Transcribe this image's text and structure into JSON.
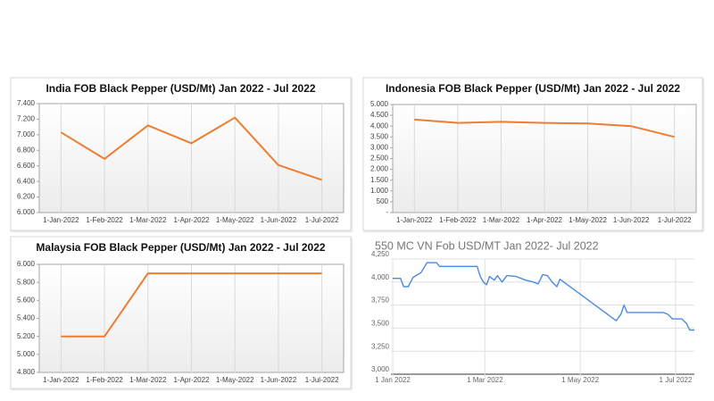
{
  "chart_data": [
    {
      "type": "line",
      "title": "India FOB Black Pepper (USD/Mt) Jan 2022 - Jul 2022",
      "categories": [
        "1-Jan-2022",
        "1-Feb-2022",
        "1-Mar-2022",
        "1-Apr-2022",
        "1-May-2022",
        "1-Jun-2022",
        "1-Jul-2022"
      ],
      "values": [
        7030,
        6690,
        7120,
        6890,
        7220,
        6610,
        6420
      ],
      "color": "#ed7d31",
      "ylim": [
        6000,
        7400
      ],
      "yticks": [
        {
          "value": 6000,
          "label": "6.000"
        },
        {
          "value": 6200,
          "label": "6.200"
        },
        {
          "value": 6400,
          "label": "6.400"
        },
        {
          "value": 6600,
          "label": "6.600"
        },
        {
          "value": 6800,
          "label": "6.800"
        },
        {
          "value": 7000,
          "label": "7.000"
        },
        {
          "value": 7200,
          "label": "7.200"
        },
        {
          "value": 7400,
          "label": "7.400"
        }
      ]
    },
    {
      "type": "line",
      "title": "Indonesia FOB Black Pepper (USD/Mt) Jan 2022 - Jul 2022",
      "categories": [
        "1-Jan-2022",
        "1-Feb-2022",
        "1-Mar-2022",
        "1-Apr-2022",
        "1-May-2022",
        "1-Jun-2022",
        "1-Jul-2022"
      ],
      "values": [
        4300,
        4150,
        4200,
        4150,
        4120,
        4000,
        3500
      ],
      "color": "#ed7d31",
      "ylim": [
        0,
        5000
      ],
      "yticks": [
        {
          "value": 0,
          "label": "-"
        },
        500,
        {
          "value": 1000,
          "label": "1.000"
        },
        {
          "value": 1500,
          "label": "1.500"
        },
        {
          "value": 2000,
          "label": "2.000"
        },
        {
          "value": 2500,
          "label": "2.500"
        },
        {
          "value": 3000,
          "label": "3.000"
        },
        {
          "value": 3500,
          "label": "3.500"
        },
        {
          "value": 4000,
          "label": "4.000"
        },
        {
          "value": 4500,
          "label": "4.500"
        },
        {
          "value": 5000,
          "label": "5.000"
        }
      ]
    },
    {
      "type": "line",
      "title": "Malaysia FOB Black Pepper (USD/Mt) Jan 2022 - Jul 2022",
      "categories": [
        "1-Jan-2022",
        "1-Feb-2022",
        "1-Mar-2022",
        "1-Apr-2022",
        "1-May-2022",
        "1-Jun-2022",
        "1-Jul-2022"
      ],
      "values": [
        5200,
        5200,
        5900,
        5900,
        5900,
        5900,
        5900
      ],
      "color": "#ed7d31",
      "ylim": [
        4800,
        6000
      ],
      "yticks": [
        {
          "value": 4800,
          "label": "4.800"
        },
        {
          "value": 5000,
          "label": "5.000"
        },
        {
          "value": 5200,
          "label": "5.200"
        },
        {
          "value": 5400,
          "label": "5.400"
        },
        {
          "value": 5600,
          "label": "5.600"
        },
        {
          "value": 5800,
          "label": "5.800"
        },
        {
          "value": 6000,
          "label": "6.000"
        }
      ]
    },
    {
      "type": "line",
      "title": "550 MC VN Fob USD/MT  Jan 2022- Jul 2022",
      "x": [
        "2022-01-01",
        "2022-01-06",
        "2022-01-08",
        "2022-01-11",
        "2022-01-14",
        "2022-01-19",
        "2022-01-23",
        "2022-01-29",
        "2022-01-31",
        "2022-02-24",
        "2022-02-26",
        "2022-02-28",
        "2022-03-02",
        "2022-03-04",
        "2022-03-07",
        "2022-03-09",
        "2022-03-12",
        "2022-03-15",
        "2022-03-21",
        "2022-03-27",
        "2022-04-01",
        "2022-04-04",
        "2022-04-07",
        "2022-04-10",
        "2022-04-13",
        "2022-04-16",
        "2022-04-18",
        "2022-05-24",
        "2022-05-27",
        "2022-05-29",
        "2022-05-31",
        "2022-06-23",
        "2022-06-26",
        "2022-06-29",
        "2022-07-05",
        "2022-07-08",
        "2022-07-10",
        "2022-07-13"
      ],
      "values": [
        4040,
        4040,
        3950,
        3950,
        4050,
        4100,
        4210,
        4210,
        4170,
        4170,
        4060,
        4000,
        3970,
        4060,
        4020,
        4070,
        4000,
        4070,
        4060,
        4020,
        4000,
        3980,
        4080,
        4070,
        4000,
        3950,
        4030,
        3580,
        3650,
        3750,
        3670,
        3670,
        3650,
        3600,
        3600,
        3550,
        3480,
        3480
      ],
      "color": "#4a8be0",
      "xlim": [
        "2022-01-01",
        "2022-07-13"
      ],
      "xticks": [
        {
          "value": "2022-01-01",
          "label": "1 Jan 2022"
        },
        {
          "value": "2022-03-01",
          "label": "1 Mar 2022"
        },
        {
          "value": "2022-05-01",
          "label": "1 May 2022"
        },
        {
          "value": "2022-07-01",
          "label": "1 Jul 2022"
        }
      ],
      "ylim": [
        3000,
        4250
      ],
      "yticks": [
        {
          "value": 3000,
          "label": "3,000"
        },
        {
          "value": 3250,
          "label": "3,250"
        },
        {
          "value": 3500,
          "label": "3,500"
        },
        {
          "value": 3750,
          "label": "3,750"
        },
        {
          "value": 4000,
          "label": "4,000"
        },
        {
          "value": 4250,
          "label": "4,250"
        }
      ]
    }
  ]
}
